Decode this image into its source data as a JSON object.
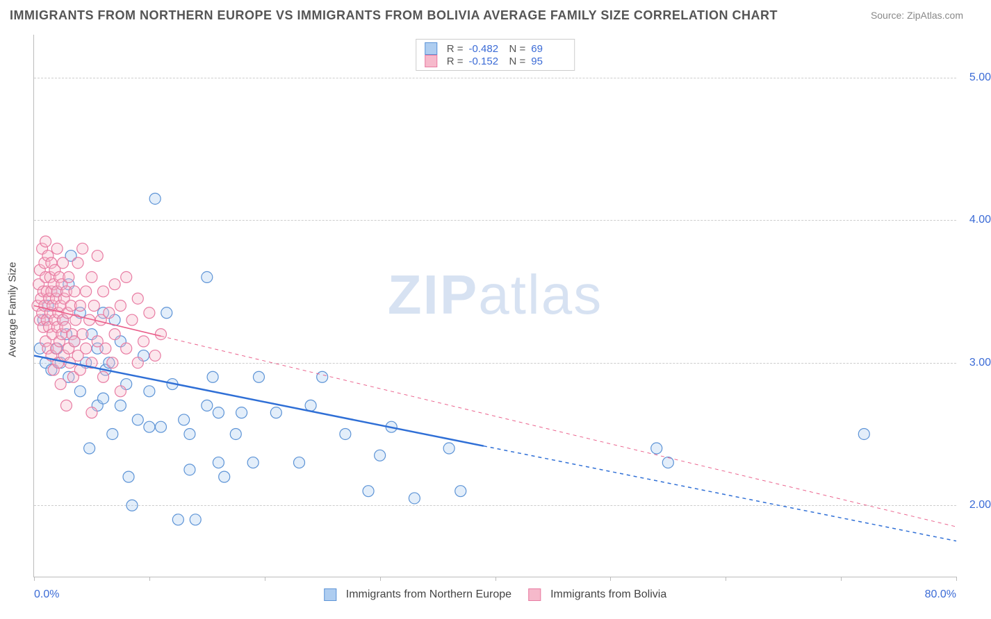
{
  "title": "IMMIGRANTS FROM NORTHERN EUROPE VS IMMIGRANTS FROM BOLIVIA AVERAGE FAMILY SIZE CORRELATION CHART",
  "source_prefix": "Source: ",
  "source_name": "ZipAtlas.com",
  "watermark_a": "ZIP",
  "watermark_b": "atlas",
  "chart": {
    "type": "scatter",
    "xlim": [
      0,
      80
    ],
    "ylim": [
      1.5,
      5.3
    ],
    "x_label_min": "0.0%",
    "x_label_max": "80.0%",
    "y_axis_title": "Average Family Size",
    "y_ticks": [
      2.0,
      3.0,
      4.0,
      5.0
    ],
    "y_tick_labels": [
      "2.00",
      "3.00",
      "4.00",
      "5.00"
    ],
    "x_tick_positions": [
      0,
      10,
      20,
      30,
      40,
      50,
      60,
      70,
      80
    ],
    "grid_color": "#cccccc",
    "background_color": "#ffffff",
    "marker_radius": 8,
    "series": [
      {
        "id": "northern_europe",
        "label": "Immigrants from Northern Europe",
        "fill": "#aecdf0",
        "stroke": "#5c93d6",
        "r_value": "-0.482",
        "n_value": "69",
        "trend": {
          "x1": 0,
          "y1": 3.05,
          "x2": 80,
          "y2": 1.75,
          "solid_until_x": 39,
          "color": "#2f6fd6",
          "width": 2.5
        },
        "points": [
          [
            0.5,
            3.1
          ],
          [
            0.8,
            3.3
          ],
          [
            1,
            3.0
          ],
          [
            1.2,
            3.4
          ],
          [
            1.5,
            2.95
          ],
          [
            2,
            3.5
          ],
          [
            2,
            3.1
          ],
          [
            2.3,
            3.0
          ],
          [
            2.5,
            3.3
          ],
          [
            2.8,
            3.2
          ],
          [
            3,
            3.55
          ],
          [
            3,
            2.9
          ],
          [
            3.2,
            3.75
          ],
          [
            3.5,
            3.15
          ],
          [
            4,
            2.8
          ],
          [
            4,
            3.35
          ],
          [
            4.5,
            3.0
          ],
          [
            4.8,
            2.4
          ],
          [
            5,
            3.2
          ],
          [
            5.5,
            3.1
          ],
          [
            5.5,
            2.7
          ],
          [
            6,
            3.35
          ],
          [
            6,
            2.75
          ],
          [
            6.2,
            2.95
          ],
          [
            6.5,
            3.0
          ],
          [
            6.8,
            2.5
          ],
          [
            7,
            3.3
          ],
          [
            7.5,
            2.7
          ],
          [
            7.5,
            3.15
          ],
          [
            8,
            2.85
          ],
          [
            8.2,
            2.2
          ],
          [
            8.5,
            2.0
          ],
          [
            9,
            2.6
          ],
          [
            9.5,
            3.05
          ],
          [
            10,
            2.55
          ],
          [
            10,
            2.8
          ],
          [
            10.5,
            4.15
          ],
          [
            11,
            2.55
          ],
          [
            11.5,
            3.35
          ],
          [
            12,
            2.85
          ],
          [
            12.5,
            1.9
          ],
          [
            13,
            2.6
          ],
          [
            13.5,
            2.25
          ],
          [
            13.5,
            2.5
          ],
          [
            14,
            1.9
          ],
          [
            15,
            3.6
          ],
          [
            15,
            2.7
          ],
          [
            15.5,
            2.9
          ],
          [
            16,
            2.3
          ],
          [
            16,
            2.65
          ],
          [
            16.5,
            2.2
          ],
          [
            17.5,
            2.5
          ],
          [
            18,
            2.65
          ],
          [
            19,
            2.3
          ],
          [
            19.5,
            2.9
          ],
          [
            21,
            2.65
          ],
          [
            23,
            2.3
          ],
          [
            24,
            2.7
          ],
          [
            25,
            2.9
          ],
          [
            27,
            2.5
          ],
          [
            29,
            2.1
          ],
          [
            30,
            2.35
          ],
          [
            31,
            2.55
          ],
          [
            33,
            2.05
          ],
          [
            36,
            2.4
          ],
          [
            37,
            2.1
          ],
          [
            54,
            2.4
          ],
          [
            55,
            2.3
          ],
          [
            72,
            2.5
          ]
        ]
      },
      {
        "id": "bolivia",
        "label": "Immigrants from Bolivia",
        "fill": "#f6b9cb",
        "stroke": "#e87ba2",
        "r_value": "-0.152",
        "n_value": "95",
        "trend": {
          "x1": 0,
          "y1": 3.4,
          "x2": 80,
          "y2": 1.85,
          "solid_until_x": 11,
          "color": "#ea5e8a",
          "width": 1.6
        },
        "points": [
          [
            0.3,
            3.4
          ],
          [
            0.4,
            3.55
          ],
          [
            0.5,
            3.3
          ],
          [
            0.5,
            3.65
          ],
          [
            0.6,
            3.45
          ],
          [
            0.7,
            3.8
          ],
          [
            0.7,
            3.35
          ],
          [
            0.8,
            3.5
          ],
          [
            0.8,
            3.25
          ],
          [
            0.9,
            3.7
          ],
          [
            0.9,
            3.4
          ],
          [
            1,
            3.6
          ],
          [
            1,
            3.15
          ],
          [
            1,
            3.85
          ],
          [
            1.1,
            3.3
          ],
          [
            1.1,
            3.5
          ],
          [
            1.2,
            3.75
          ],
          [
            1.2,
            3.1
          ],
          [
            1.3,
            3.45
          ],
          [
            1.3,
            3.25
          ],
          [
            1.4,
            3.6
          ],
          [
            1.4,
            3.35
          ],
          [
            1.5,
            3.5
          ],
          [
            1.5,
            3.05
          ],
          [
            1.5,
            3.7
          ],
          [
            1.6,
            3.4
          ],
          [
            1.6,
            3.2
          ],
          [
            1.7,
            3.55
          ],
          [
            1.7,
            2.95
          ],
          [
            1.8,
            3.3
          ],
          [
            1.8,
            3.65
          ],
          [
            1.9,
            3.1
          ],
          [
            1.9,
            3.45
          ],
          [
            2,
            3.25
          ],
          [
            2,
            3.5
          ],
          [
            2,
            3.8
          ],
          [
            2.1,
            3.35
          ],
          [
            2.1,
            3.0
          ],
          [
            2.2,
            3.6
          ],
          [
            2.2,
            3.15
          ],
          [
            2.3,
            3.4
          ],
          [
            2.3,
            2.85
          ],
          [
            2.4,
            3.55
          ],
          [
            2.4,
            3.2
          ],
          [
            2.5,
            3.3
          ],
          [
            2.5,
            3.7
          ],
          [
            2.6,
            3.05
          ],
          [
            2.6,
            3.45
          ],
          [
            2.7,
            3.25
          ],
          [
            2.8,
            3.5
          ],
          [
            2.8,
            2.7
          ],
          [
            2.9,
            3.35
          ],
          [
            3,
            3.1
          ],
          [
            3,
            3.6
          ],
          [
            3.1,
            3.0
          ],
          [
            3.2,
            3.4
          ],
          [
            3.3,
            3.2
          ],
          [
            3.4,
            2.9
          ],
          [
            3.5,
            3.5
          ],
          [
            3.5,
            3.15
          ],
          [
            3.6,
            3.3
          ],
          [
            3.8,
            3.05
          ],
          [
            3.8,
            3.7
          ],
          [
            4,
            3.4
          ],
          [
            4,
            2.95
          ],
          [
            4.2,
            3.2
          ],
          [
            4.2,
            3.8
          ],
          [
            4.5,
            3.1
          ],
          [
            4.5,
            3.5
          ],
          [
            4.8,
            3.3
          ],
          [
            5,
            3.6
          ],
          [
            5,
            2.65
          ],
          [
            5,
            3.0
          ],
          [
            5.2,
            3.4
          ],
          [
            5.5,
            3.15
          ],
          [
            5.5,
            3.75
          ],
          [
            5.8,
            3.3
          ],
          [
            6,
            2.9
          ],
          [
            6,
            3.5
          ],
          [
            6.2,
            3.1
          ],
          [
            6.5,
            3.35
          ],
          [
            6.8,
            3.0
          ],
          [
            7,
            3.55
          ],
          [
            7,
            3.2
          ],
          [
            7.5,
            3.4
          ],
          [
            7.5,
            2.8
          ],
          [
            8,
            3.1
          ],
          [
            8,
            3.6
          ],
          [
            8.5,
            3.3
          ],
          [
            9,
            3.0
          ],
          [
            9,
            3.45
          ],
          [
            9.5,
            3.15
          ],
          [
            10,
            3.35
          ],
          [
            10.5,
            3.05
          ],
          [
            11,
            3.2
          ]
        ]
      }
    ],
    "legend_labels": {
      "R": "R =",
      "N": "N ="
    }
  }
}
